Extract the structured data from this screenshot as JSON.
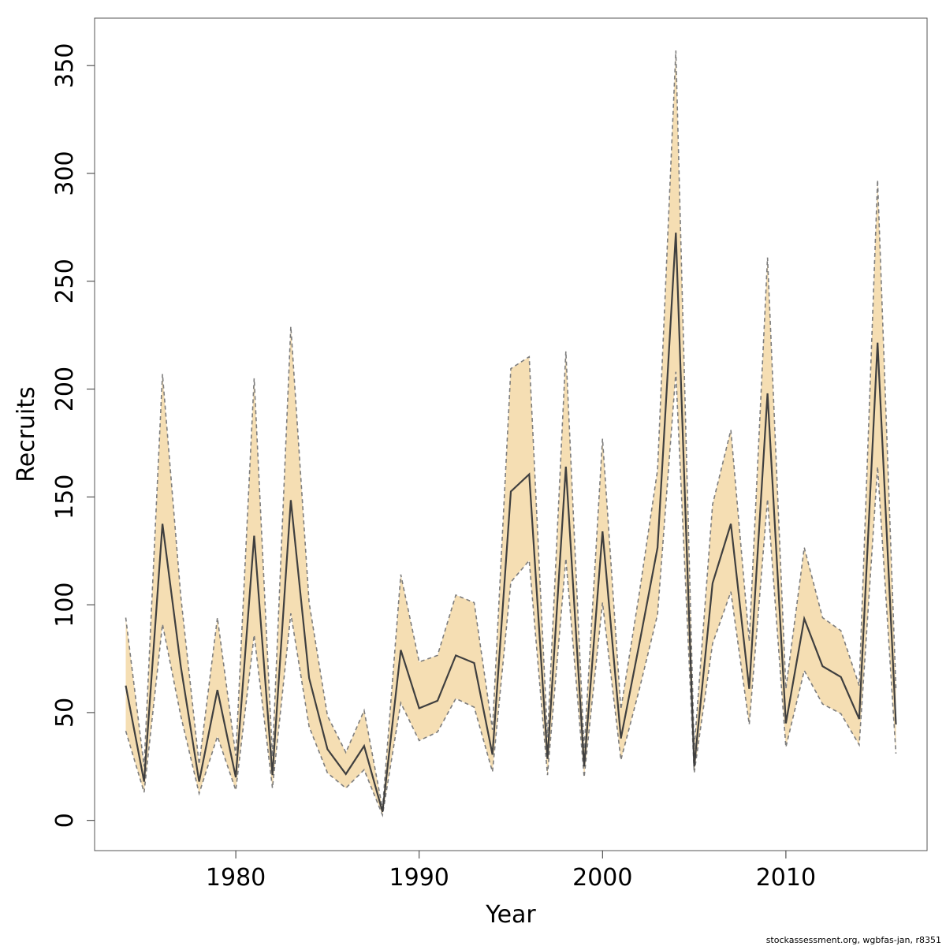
{
  "chart_data": {
    "type": "line",
    "title": "",
    "xlabel": "Year",
    "ylabel": "Recruits",
    "xlim": [
      1972.3,
      2017.7
    ],
    "ylim": [
      -14,
      372
    ],
    "x_ticks": [
      1980,
      1990,
      2000,
      2010
    ],
    "y_ticks": [
      0,
      50,
      100,
      150,
      200,
      250,
      300,
      350
    ],
    "grid": false,
    "legend": "none",
    "x": [
      1974,
      1975,
      1976,
      1977,
      1978,
      1979,
      1980,
      1981,
      1982,
      1983,
      1984,
      1985,
      1986,
      1987,
      1988,
      1989,
      1990,
      1991,
      1992,
      1993,
      1994,
      1995,
      1996,
      1997,
      1998,
      1999,
      2000,
      2001,
      2002,
      2003,
      2004,
      2005,
      2006,
      2007,
      2008,
      2009,
      2010,
      2011,
      2012,
      2013,
      2014,
      2015,
      2016
    ],
    "series": [
      {
        "role": "estimate",
        "values": [
          62.5,
          18,
          137.5,
          71.5,
          18,
          60.5,
          20,
          132,
          21,
          148.5,
          66,
          33,
          21.5,
          34.5,
          4,
          79,
          52,
          55.5,
          76.5,
          73,
          30.5,
          152.5,
          160.5,
          28.5,
          164,
          25,
          134,
          38,
          81.5,
          126.5,
          272.5,
          25,
          110,
          137.5,
          61,
          198,
          45,
          93.5,
          71.5,
          66.5,
          47,
          221.5,
          44.5
        ]
      },
      {
        "role": "upper",
        "values": [
          94,
          25,
          207,
          104,
          26,
          94,
          30,
          205,
          29.5,
          229,
          101,
          48.5,
          31.5,
          51,
          5.5,
          114,
          73.5,
          76.5,
          104.5,
          101,
          42,
          209.5,
          215,
          38.5,
          217.5,
          33,
          177,
          51.5,
          105,
          162.5,
          357,
          33,
          146.5,
          181,
          83,
          261,
          61,
          126.5,
          94,
          88,
          62.5,
          297,
          61
        ]
      },
      {
        "role": "lower",
        "values": [
          41.5,
          13,
          91,
          48.5,
          12.5,
          39,
          14,
          86,
          15,
          96,
          43.5,
          22,
          15,
          23.5,
          2.5,
          54.5,
          37,
          41,
          56.5,
          52.5,
          22.5,
          110.5,
          120.5,
          21,
          121.5,
          20,
          101,
          28,
          60.5,
          95.5,
          208,
          22,
          82,
          106,
          44.5,
          149,
          34,
          69.5,
          54,
          49.5,
          35,
          164,
          31
        ]
      }
    ],
    "colors": {
      "band_fill": "#f5deb3",
      "band_border": "#7d7d7d",
      "line": "#3f3f3f",
      "frame": "#555555"
    }
  },
  "footer": "stockassessment.org, wgbfas-jan, r8351"
}
